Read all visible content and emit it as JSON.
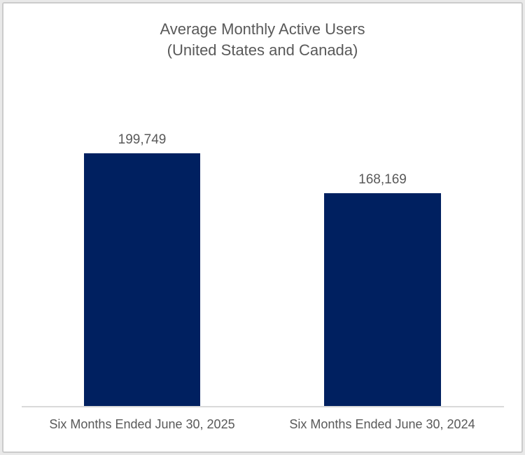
{
  "window": {
    "background": "#ffffff",
    "border_color": "#cbcbcb"
  },
  "chart_data": {
    "type": "bar",
    "title": "Average Monthly Active Users",
    "subtitle": "(United States and Canada)",
    "categories": [
      "Six Months Ended June 30, 2025",
      "Six Months Ended June 30, 2024"
    ],
    "values": [
      199749,
      168169
    ],
    "value_labels": [
      "199,749",
      "168,169"
    ],
    "bar_color": "#002060",
    "text_color": "#595959",
    "axis_line_color": "#d9d9d9",
    "y_min": 0,
    "y_axis_visible": false,
    "gridlines": false,
    "legend": false,
    "data_labels_position": "outside-end"
  }
}
